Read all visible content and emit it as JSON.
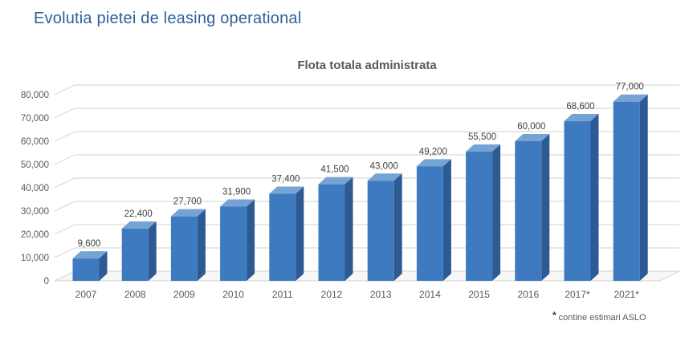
{
  "page": {
    "title": "Evolutia pietei de leasing operational"
  },
  "footnote": {
    "marker": "*",
    "text": "contine estimari ASLO"
  },
  "colors": {
    "page_title": "#2d5f9b",
    "chart_title": "#595959",
    "axis_text": "#595959",
    "label_text": "#404040",
    "grid": "#d9d9d9",
    "floor": "#f7f7f7",
    "bar_front": "#3e7ac0",
    "bar_top": "#74a3d4",
    "bar_side": "#2d5a92"
  },
  "chart_data": {
    "type": "bar",
    "style": "3d-column",
    "title": "Flota totala administrata",
    "categories": [
      "2007",
      "2008",
      "2009",
      "2010",
      "2011",
      "2012",
      "2013",
      "2014",
      "2015",
      "2016",
      "2017*",
      "2021*"
    ],
    "values": [
      9600,
      22400,
      27700,
      31900,
      37400,
      41500,
      43000,
      49200,
      55500,
      60000,
      68600,
      77000
    ],
    "value_labels": [
      "9,600",
      "22,400",
      "27,700",
      "31,900",
      "37,400",
      "41,500",
      "43,000",
      "49,200",
      "55,500",
      "60,000",
      "68,600",
      "77,000"
    ],
    "xlabel": "",
    "ylabel": "",
    "ylim": [
      0,
      80000
    ],
    "ytick_step": 10000,
    "ytick_labels": [
      "0",
      "10,000",
      "20,000",
      "30,000",
      "40,000",
      "50,000",
      "60,000",
      "70,000",
      "80,000"
    ],
    "grid": true,
    "legend": false,
    "footnote": "* contine estimari ASLO"
  }
}
